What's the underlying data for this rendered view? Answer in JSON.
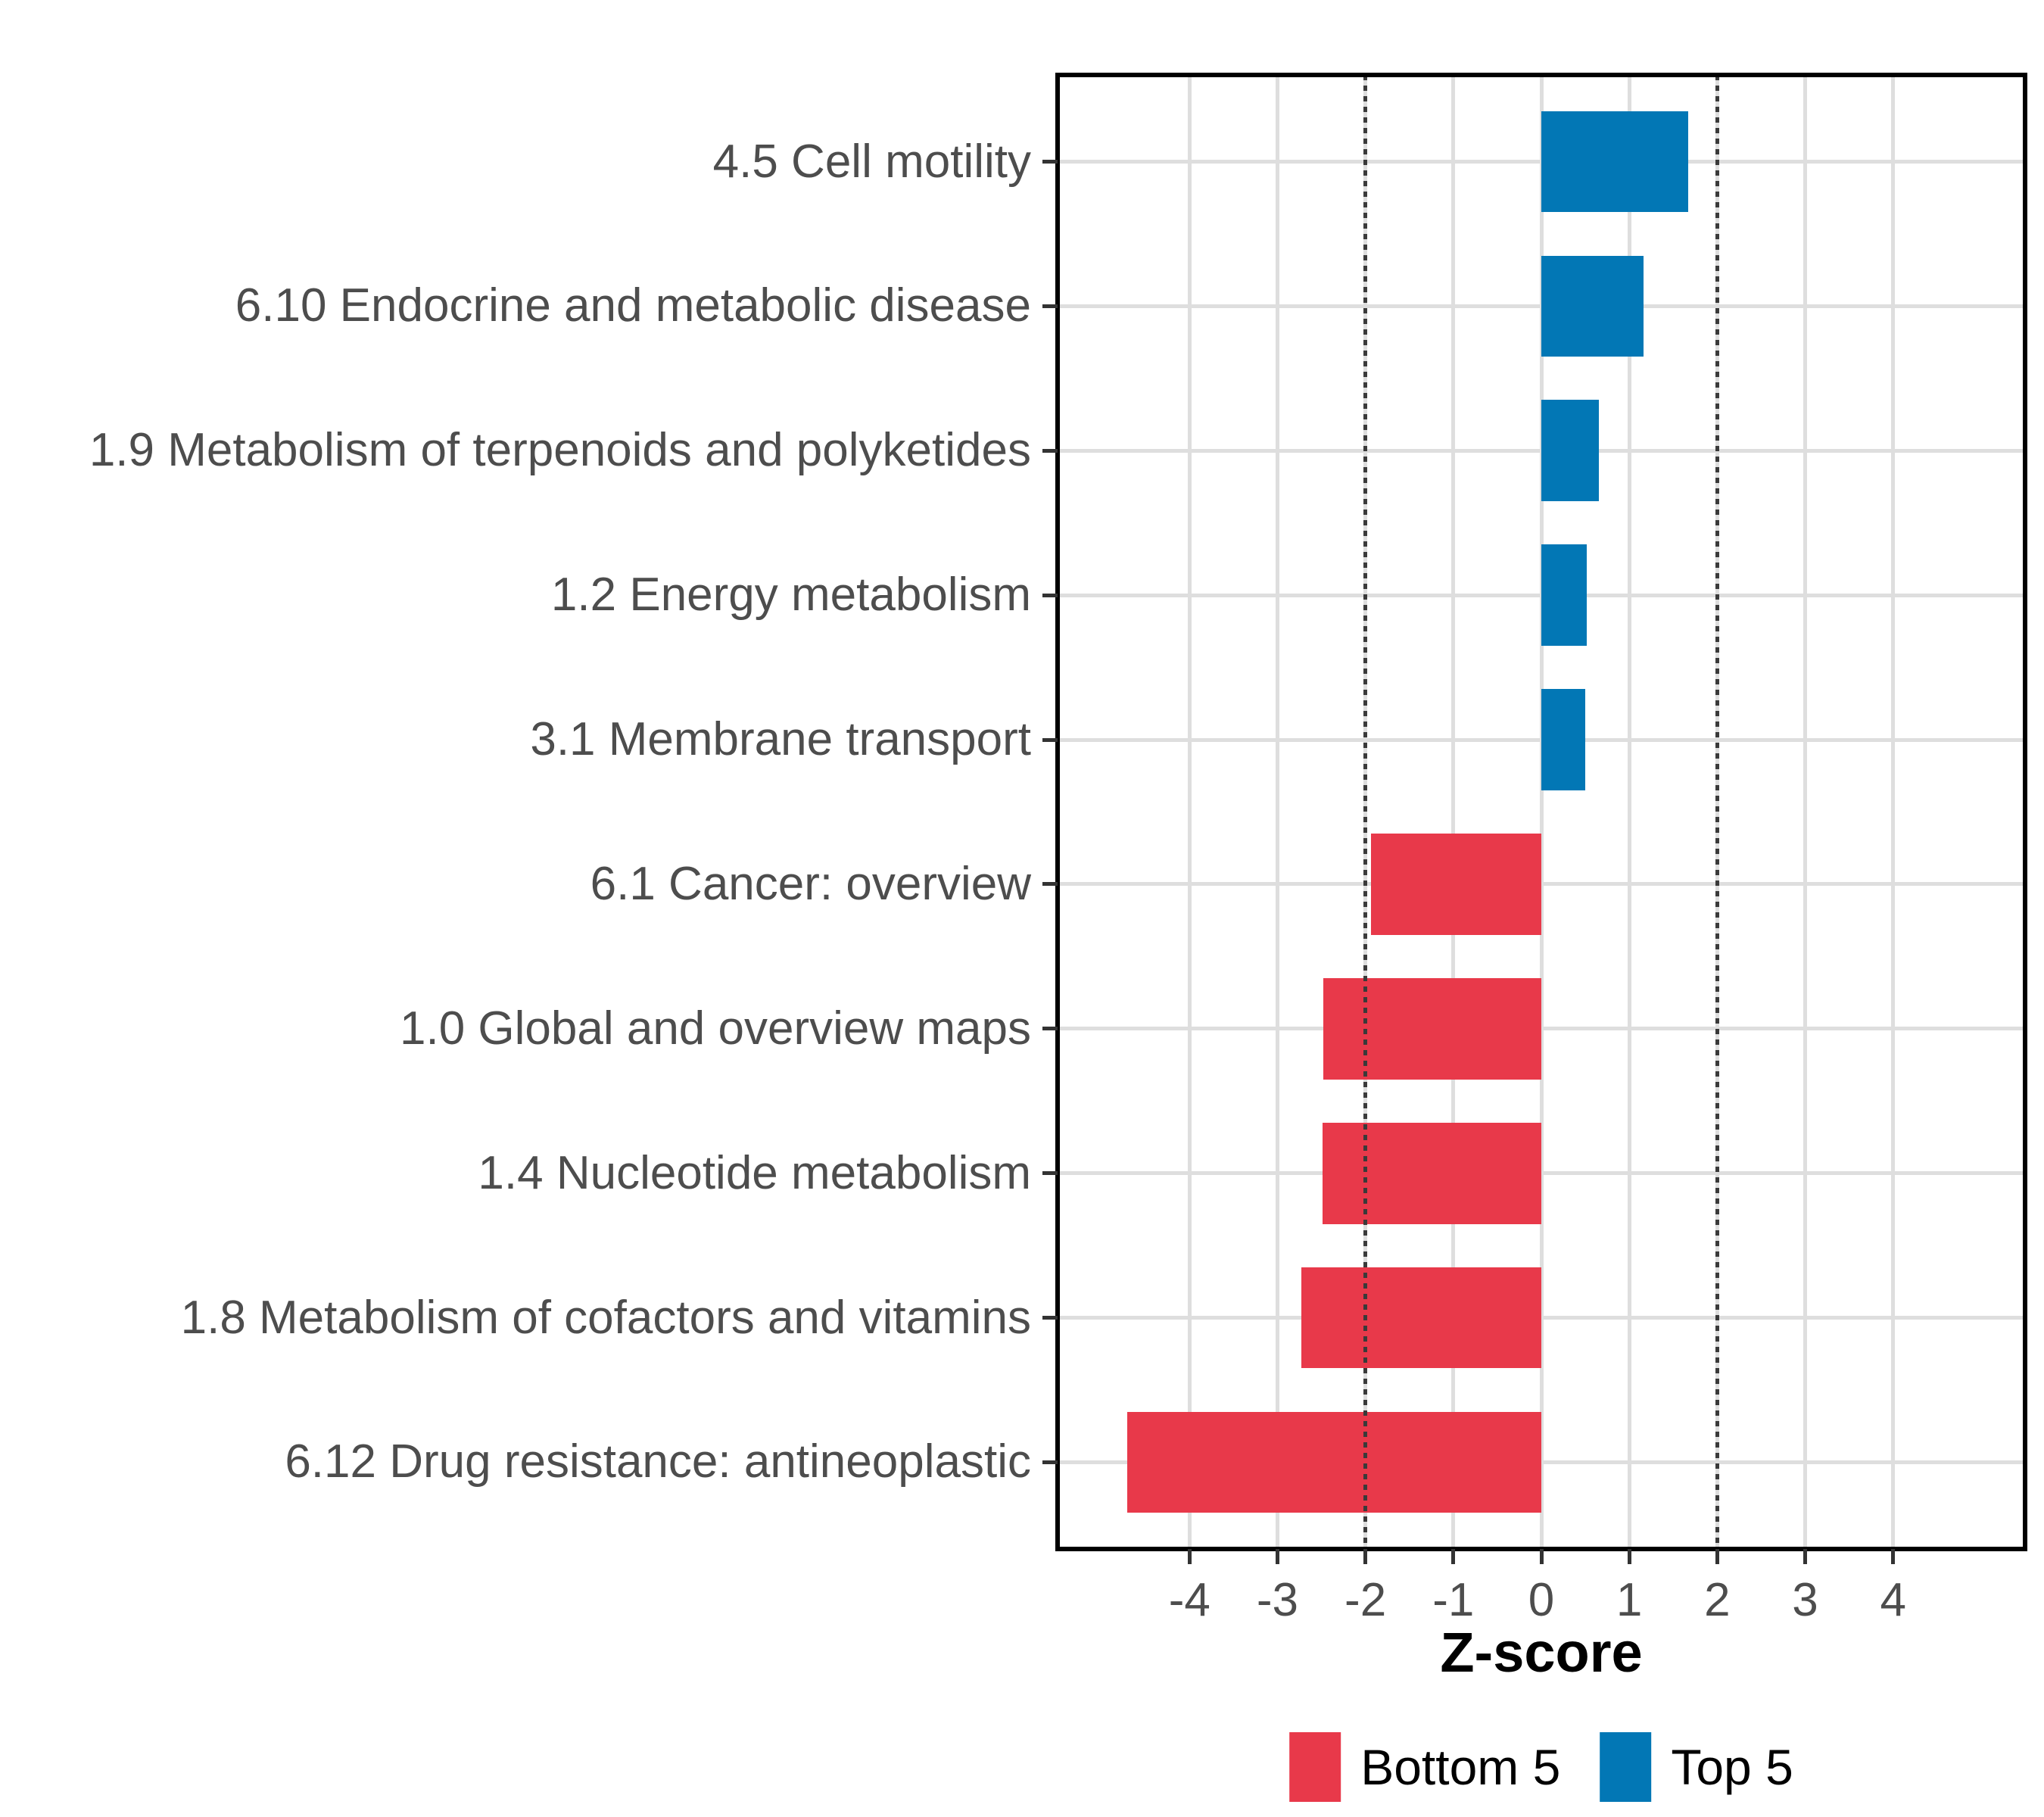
{
  "chart_data": {
    "type": "bar",
    "orientation": "horizontal",
    "title": "",
    "xlabel": "Z-score",
    "ylabel": "",
    "xlim": [
      -5.5,
      5.5
    ],
    "x_ticks": [
      -4,
      -3,
      -2,
      -1,
      0,
      1,
      2,
      3,
      4
    ],
    "reference_lines": [
      -2,
      2
    ],
    "grid": "major-only",
    "legend_position": "bottom",
    "bars": [
      {
        "label": "4.5 Cell motility",
        "value": 1.67,
        "group": "Top 5"
      },
      {
        "label": "6.10 Endocrine and metabolic disease",
        "value": 1.16,
        "group": "Top 5"
      },
      {
        "label": "1.9 Metabolism of terpenoids and polyketides",
        "value": 0.65,
        "group": "Top 5"
      },
      {
        "label": "1.2 Energy metabolism",
        "value": 0.52,
        "group": "Top 5"
      },
      {
        "label": "3.1 Membrane transport",
        "value": 0.5,
        "group": "Top 5"
      },
      {
        "label": "6.1 Cancer: overview",
        "value": -1.94,
        "group": "Bottom 5"
      },
      {
        "label": "1.0 Global and overview maps",
        "value": -2.48,
        "group": "Bottom 5"
      },
      {
        "label": "1.4 Nucleotide metabolism",
        "value": -2.49,
        "group": "Bottom 5"
      },
      {
        "label": "1.8 Metabolism of cofactors and vitamins",
        "value": -2.73,
        "group": "Bottom 5"
      },
      {
        "label": "6.12 Drug resistance: antineoplastic",
        "value": -4.71,
        "group": "Bottom 5"
      }
    ],
    "legend": [
      {
        "label": "Bottom 5",
        "color": "#E8394A"
      },
      {
        "label": "Top 5",
        "color": "#0277B5"
      }
    ],
    "colors": {
      "Bottom 5": "#E8394A",
      "Top 5": "#0277B5"
    }
  },
  "style": {
    "background": "#FFFFFF",
    "grid_color": "#DEDEDE",
    "axis_text_color": "#4D4D4D",
    "tick_color": "#333333",
    "reference_line_color": "#3A3A3A",
    "panel_border_color": "#000000"
  }
}
